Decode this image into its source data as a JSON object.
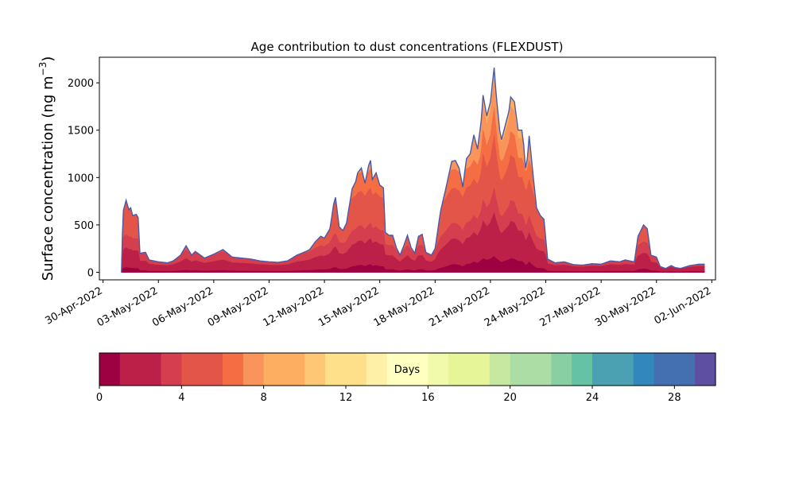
{
  "chart_data": {
    "type": "area",
    "title": "Age contribution to dust concentrations (FLEXDUST)",
    "xlabel": "",
    "ylabel_main": "Surface concentration (ng m",
    "ylabel_sup": "−3",
    "ylabel_close": ")",
    "x_start": "2022-05-01T06:00",
    "xlim_days": [
      -0.2,
      33.2
    ],
    "ylim": [
      -80,
      2270
    ],
    "yticks": [
      0,
      500,
      1000,
      1500,
      2000
    ],
    "xtick_labels": [
      "30-Apr-2022",
      "03-May-2022",
      "06-May-2022",
      "09-May-2022",
      "12-May-2022",
      "15-May-2022",
      "18-May-2022",
      "21-May-2022",
      "24-May-2022",
      "27-May-2022",
      "30-May-2022",
      "02-Jun-2022"
    ],
    "xtick_days": [
      0,
      3,
      6,
      9,
      12,
      15,
      18,
      21,
      24,
      27,
      30,
      33
    ],
    "total_series_knots": [
      [
        1,
        0
      ],
      [
        1.05,
        400
      ],
      [
        1.1,
        650
      ],
      [
        1.25,
        760
      ],
      [
        1.4,
        660
      ],
      [
        1.5,
        680
      ],
      [
        1.6,
        600
      ],
      [
        1.8,
        610
      ],
      [
        1.9,
        580
      ],
      [
        2.0,
        200
      ],
      [
        2.3,
        210
      ],
      [
        2.5,
        130
      ],
      [
        3.0,
        110
      ],
      [
        3.5,
        100
      ],
      [
        3.8,
        120
      ],
      [
        4.2,
        180
      ],
      [
        4.5,
        280
      ],
      [
        4.8,
        180
      ],
      [
        5.0,
        220
      ],
      [
        5.5,
        150
      ],
      [
        6.0,
        190
      ],
      [
        6.5,
        240
      ],
      [
        7.0,
        160
      ],
      [
        7.5,
        150
      ],
      [
        8.0,
        140
      ],
      [
        8.5,
        120
      ],
      [
        9.0,
        110
      ],
      [
        9.5,
        105
      ],
      [
        10.0,
        120
      ],
      [
        10.5,
        180
      ],
      [
        11.0,
        220
      ],
      [
        11.2,
        240
      ],
      [
        11.5,
        320
      ],
      [
        11.8,
        380
      ],
      [
        12.0,
        360
      ],
      [
        12.3,
        460
      ],
      [
        12.5,
        720
      ],
      [
        12.6,
        790
      ],
      [
        12.8,
        480
      ],
      [
        13.0,
        440
      ],
      [
        13.2,
        520
      ],
      [
        13.5,
        880
      ],
      [
        13.7,
        960
      ],
      [
        13.8,
        1050
      ],
      [
        14.0,
        1100
      ],
      [
        14.2,
        940
      ],
      [
        14.4,
        1130
      ],
      [
        14.5,
        1180
      ],
      [
        14.6,
        980
      ],
      [
        14.8,
        1050
      ],
      [
        15.0,
        920
      ],
      [
        15.2,
        890
      ],
      [
        15.3,
        420
      ],
      [
        15.5,
        390
      ],
      [
        15.7,
        390
      ],
      [
        15.9,
        260
      ],
      [
        16.1,
        180
      ],
      [
        16.3,
        280
      ],
      [
        16.5,
        390
      ],
      [
        16.7,
        260
      ],
      [
        16.9,
        200
      ],
      [
        17.1,
        380
      ],
      [
        17.3,
        400
      ],
      [
        17.5,
        210
      ],
      [
        17.8,
        180
      ],
      [
        18.0,
        250
      ],
      [
        18.3,
        650
      ],
      [
        18.6,
        900
      ],
      [
        18.9,
        1170
      ],
      [
        19.1,
        1180
      ],
      [
        19.3,
        1100
      ],
      [
        19.5,
        900
      ],
      [
        19.7,
        1200
      ],
      [
        19.9,
        1250
      ],
      [
        20.1,
        1450
      ],
      [
        20.3,
        1300
      ],
      [
        20.5,
        1600
      ],
      [
        20.6,
        1870
      ],
      [
        20.8,
        1650
      ],
      [
        21.0,
        1800
      ],
      [
        21.2,
        2160
      ],
      [
        21.3,
        1900
      ],
      [
        21.5,
        1500
      ],
      [
        21.6,
        1400
      ],
      [
        21.8,
        1550
      ],
      [
        22.0,
        1700
      ],
      [
        22.1,
        1850
      ],
      [
        22.3,
        1800
      ],
      [
        22.5,
        1500
      ],
      [
        22.7,
        1500
      ],
      [
        22.8,
        1350
      ],
      [
        22.9,
        1100
      ],
      [
        23.0,
        1200
      ],
      [
        23.1,
        1440
      ],
      [
        23.3,
        1050
      ],
      [
        23.5,
        680
      ],
      [
        23.7,
        600
      ],
      [
        23.9,
        560
      ],
      [
        24.1,
        140
      ],
      [
        24.5,
        100
      ],
      [
        25.0,
        110
      ],
      [
        25.5,
        80
      ],
      [
        26.0,
        75
      ],
      [
        26.5,
        90
      ],
      [
        27.0,
        85
      ],
      [
        27.5,
        120
      ],
      [
        28.0,
        110
      ],
      [
        28.3,
        130
      ],
      [
        28.8,
        110
      ],
      [
        29.0,
        380
      ],
      [
        29.3,
        500
      ],
      [
        29.5,
        460
      ],
      [
        29.7,
        180
      ],
      [
        30.0,
        160
      ],
      [
        30.2,
        60
      ],
      [
        30.5,
        40
      ],
      [
        30.8,
        70
      ],
      [
        31.0,
        50
      ],
      [
        31.3,
        40
      ],
      [
        31.8,
        70
      ],
      [
        32.3,
        85
      ],
      [
        32.6,
        85
      ],
      [
        32.61,
        0
      ]
    ],
    "colorbar": {
      "label": "Days",
      "range": [
        0,
        30
      ],
      "ticks": [
        0,
        4,
        8,
        12,
        16,
        20,
        24,
        28
      ],
      "colormap": "Spectral",
      "colors": [
        "#9e0142",
        "#bc2048",
        "#d53e4f",
        "#e45549",
        "#f46d43",
        "#f9945a",
        "#fdae61",
        "#fdc776",
        "#fee08b",
        "#fef0a6",
        "#ffffbf",
        "#f1f9aa",
        "#e6f598",
        "#c7e8a0",
        "#abdda4",
        "#88cfa4",
        "#66c2a5",
        "#4ba0b1",
        "#3288bd",
        "#4470b1",
        "#5e4fa2"
      ]
    }
  }
}
